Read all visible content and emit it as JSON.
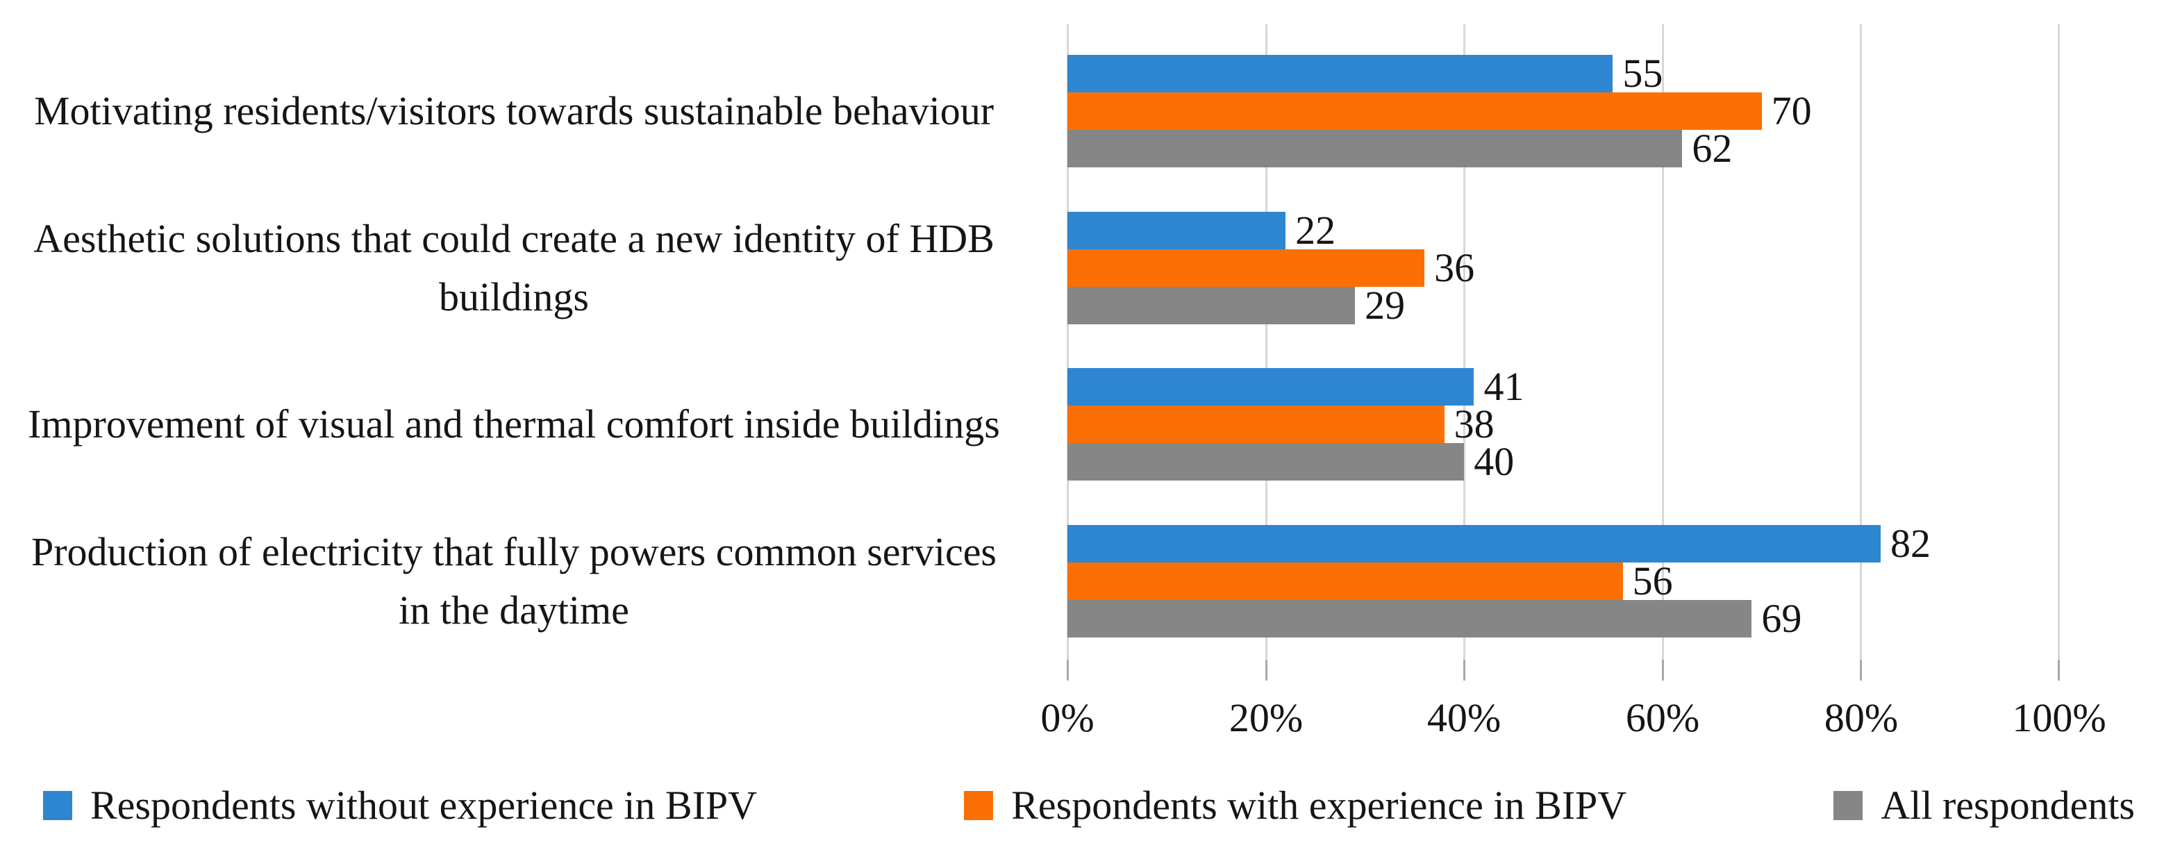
{
  "chart_data": {
    "type": "bar",
    "orientation": "horizontal",
    "title": "",
    "xlabel": "",
    "ylabel": "",
    "xlim": [
      0,
      100
    ],
    "grid": "vertical",
    "legend_position": "bottom",
    "x_tick_labels": [
      "0%",
      "20%",
      "40%",
      "60%",
      "80%",
      "100%"
    ],
    "categories": [
      "Motivating residents/visitors towards sustainable behaviour",
      "Aesthetic solutions that could create a new identity of HDB buildings",
      "Improvement of visual and thermal comfort inside buildings",
      "Production of electricity that fully powers common services in the daytime"
    ],
    "series": [
      {
        "name": "Respondents without experience in BIPV",
        "color": "#2E86D1",
        "values": [
          55,
          22,
          41,
          82
        ]
      },
      {
        "name": "Respondents with experience in BIPV",
        "color": "#FB7004",
        "values": [
          70,
          36,
          38,
          56
        ]
      },
      {
        "name": "All respondents",
        "color": "#868686",
        "values": [
          62,
          29,
          40,
          69
        ]
      }
    ],
    "colors": {
      "gridline": "#D7D7D7",
      "tick": "#A8A8A8",
      "text": "#151515",
      "background": "#FFFFFF"
    }
  }
}
